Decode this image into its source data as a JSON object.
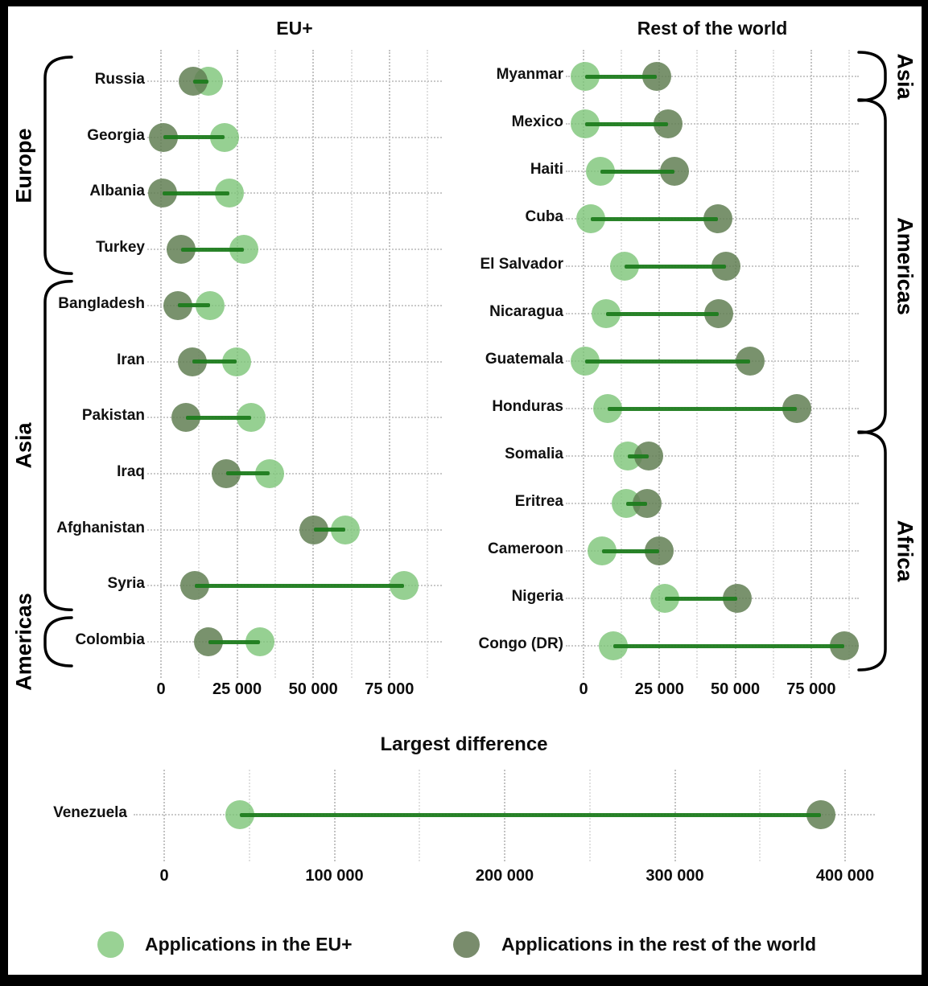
{
  "legend": {
    "eu_label": "Applications in the EU+",
    "rest_label": "Applications in the rest of the world"
  },
  "colors": {
    "eu_dot": "#99D294",
    "rest_dot": "#798C6C",
    "link_line": "#1E7C1E"
  },
  "chart_data": [
    {
      "type": "dumbbell",
      "title": "EU+",
      "orientation": "horizontal",
      "series_names": [
        "Applications in the EU+",
        "Applications in the rest of the world"
      ],
      "x_ticks": {
        "labels": [
          "0",
          "25 000",
          "50 000",
          "75 000"
        ],
        "values": [
          0,
          25000,
          50000,
          75000
        ]
      },
      "xlim": [
        0,
        92000
      ],
      "grid": "dotted, major and minor",
      "rows": [
        {
          "label": "Russia",
          "group": "Europe",
          "eu": 15500,
          "rest": 10600
        },
        {
          "label": "Georgia",
          "group": "Europe",
          "eu": 21000,
          "rest": 700
        },
        {
          "label": "Albania",
          "group": "Europe",
          "eu": 22500,
          "rest": 500
        },
        {
          "label": "Turkey",
          "group": "Europe",
          "eu": 27300,
          "rest": 6700
        },
        {
          "label": "Bangladesh",
          "group": "Asia",
          "eu": 16100,
          "rest": 5500
        },
        {
          "label": "Iran",
          "group": "Asia",
          "eu": 24900,
          "rest": 10400
        },
        {
          "label": "Pakistan",
          "group": "Asia",
          "eu": 29500,
          "rest": 8200
        },
        {
          "label": "Iraq",
          "group": "Asia",
          "eu": 35700,
          "rest": 21400
        },
        {
          "label": "Afghanistan",
          "group": "Asia",
          "eu": 60400,
          "rest": 50200
        },
        {
          "label": "Syria",
          "group": "Asia",
          "eu": 79800,
          "rest": 11100
        },
        {
          "label": "Colombia",
          "group": "Americas",
          "eu": 32400,
          "rest": 15700
        }
      ],
      "groups": [
        {
          "name": "Europe",
          "first": 0,
          "last": 3
        },
        {
          "name": "Asia",
          "first": 4,
          "last": 9
        },
        {
          "name": "Americas",
          "first": 10,
          "last": 10
        }
      ]
    },
    {
      "type": "dumbbell",
      "title": "Rest of the world",
      "orientation": "horizontal",
      "series_names": [
        "Applications in the EU+",
        "Applications in the rest of the world"
      ],
      "x_ticks": {
        "labels": [
          "0",
          "25 000",
          "50 000",
          "75 000"
        ],
        "values": [
          0,
          25000,
          50000,
          75000
        ]
      },
      "xlim": [
        0,
        90000
      ],
      "grid": "dotted, major and minor",
      "rows": [
        {
          "label": "Myanmar",
          "group": "Asia",
          "eu": 500,
          "rest": 24200
        },
        {
          "label": "Mexico",
          "group": "Americas",
          "eu": 600,
          "rest": 27800
        },
        {
          "label": "Haiti",
          "group": "Americas",
          "eu": 5600,
          "rest": 29900
        },
        {
          "label": "Cuba",
          "group": "Americas",
          "eu": 2500,
          "rest": 44200
        },
        {
          "label": "El Salvador",
          "group": "Americas",
          "eu": 13500,
          "rest": 47000
        },
        {
          "label": "Nicaragua",
          "group": "Americas",
          "eu": 7300,
          "rest": 44600
        },
        {
          "label": "Guatemala",
          "group": "Americas",
          "eu": 400,
          "rest": 54900
        },
        {
          "label": "Honduras",
          "group": "Americas",
          "eu": 8000,
          "rest": 70200
        },
        {
          "label": "Somalia",
          "group": "Africa",
          "eu": 14500,
          "rest": 21400
        },
        {
          "label": "Eritrea",
          "group": "Africa",
          "eu": 14100,
          "rest": 20900
        },
        {
          "label": "Cameroon",
          "group": "Africa",
          "eu": 6200,
          "rest": 24900
        },
        {
          "label": "Nigeria",
          "group": "Africa",
          "eu": 26700,
          "rest": 50600
        },
        {
          "label": "Congo (DR)",
          "group": "Africa",
          "eu": 9900,
          "rest": 85800
        }
      ],
      "groups": [
        {
          "name": "Asia",
          "first": 0,
          "last": 0
        },
        {
          "name": "Americas",
          "first": 1,
          "last": 7
        },
        {
          "name": "Africa",
          "first": 8,
          "last": 12
        }
      ]
    },
    {
      "type": "dumbbell",
      "title": "Largest difference",
      "orientation": "horizontal",
      "series_names": [
        "Applications in the EU+",
        "Applications in the rest of the world"
      ],
      "x_ticks": {
        "labels": [
          "0",
          "100 000",
          "200 000",
          "300 000",
          "400 000"
        ],
        "values": [
          0,
          100000,
          200000,
          300000,
          400000
        ]
      },
      "xlim": [
        0,
        415000
      ],
      "grid": "dotted, major and minor",
      "rows": [
        {
          "label": "Venezuela",
          "group": "",
          "eu": 44500,
          "rest": 386000
        }
      ],
      "groups": []
    }
  ]
}
